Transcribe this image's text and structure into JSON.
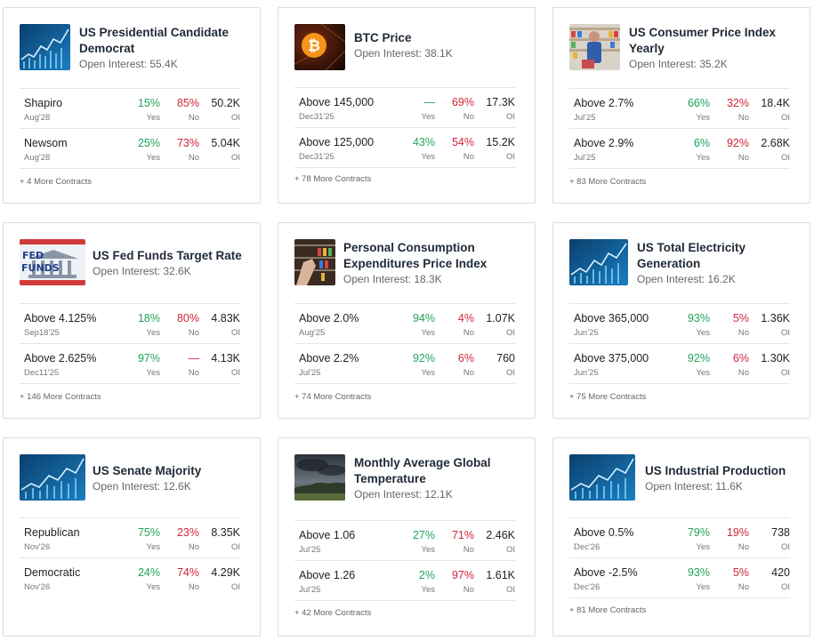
{
  "cards": [
    {
      "title": "US Presidential Candidate Democrat",
      "open_interest": "Open Interest: 55.4K",
      "image": "chart-thumbnail",
      "rows": [
        {
          "label": "Shapiro",
          "date": "Aug'28",
          "yes": "15%",
          "no": "85%",
          "oi": "50.2K",
          "yes_lbl": "Yes",
          "no_lbl": "No",
          "oi_lbl": "OI"
        },
        {
          "label": "Newsom",
          "date": "Aug'28",
          "yes": "25%",
          "no": "73%",
          "oi": "5.04K",
          "yes_lbl": "Yes",
          "no_lbl": "No",
          "oi_lbl": "OI"
        }
      ],
      "more": "+ 4 More Contracts"
    },
    {
      "title": "BTC Price",
      "open_interest": "Open Interest: 38.1K",
      "image": "bitcoin-thumbnail",
      "rows": [
        {
          "label": "Above 145,000",
          "date": "Dec31'25",
          "yes": "—",
          "no": "69%",
          "oi": "17.3K",
          "yes_lbl": "Yes",
          "no_lbl": "No",
          "oi_lbl": "OI"
        },
        {
          "label": "Above 125,000",
          "date": "Dec31'25",
          "yes": "43%",
          "no": "54%",
          "oi": "15.2K",
          "yes_lbl": "Yes",
          "no_lbl": "No",
          "oi_lbl": "OI"
        }
      ],
      "more": "+ 78 More Contracts"
    },
    {
      "title": "US Consumer Price Index Yearly",
      "open_interest": "Open Interest: 35.2K",
      "image": "grocery-thumbnail",
      "rows": [
        {
          "label": "Above 2.7%",
          "date": "Jul'25",
          "yes": "66%",
          "no": "32%",
          "oi": "18.4K",
          "yes_lbl": "Yes",
          "no_lbl": "No",
          "oi_lbl": "OI"
        },
        {
          "label": "Above 2.9%",
          "date": "Jul'25",
          "yes": "6%",
          "no": "92%",
          "oi": "2.68K",
          "yes_lbl": "Yes",
          "no_lbl": "No",
          "oi_lbl": "OI"
        }
      ],
      "more": "+ 83 More Contracts"
    },
    {
      "title": "US Fed Funds Target Rate",
      "open_interest": "Open Interest: 32.6K",
      "image": "fed-funds-thumbnail",
      "image_text": "FED FUNDS",
      "rows": [
        {
          "label": "Above 4.125%",
          "date": "Sep18'25",
          "yes": "18%",
          "no": "80%",
          "oi": "4.83K",
          "yes_lbl": "Yes",
          "no_lbl": "No",
          "oi_lbl": "OI"
        },
        {
          "label": "Above 2.625%",
          "date": "Dec11'25",
          "yes": "97%",
          "no": "—",
          "oi": "4.13K",
          "yes_lbl": "Yes",
          "no_lbl": "No",
          "oi_lbl": "OI"
        }
      ],
      "more": "+ 146 More Contracts"
    },
    {
      "title": "Personal Consumption Expenditures Price Index",
      "open_interest": "Open Interest: 18.3K",
      "image": "shopping-thumbnail",
      "rows": [
        {
          "label": "Above 2.0%",
          "date": "Aug'25",
          "yes": "94%",
          "no": "4%",
          "oi": "1.07K",
          "yes_lbl": "Yes",
          "no_lbl": "No",
          "oi_lbl": "OI"
        },
        {
          "label": "Above 2.2%",
          "date": "Jul'25",
          "yes": "92%",
          "no": "6%",
          "oi": "760",
          "yes_lbl": "Yes",
          "no_lbl": "No",
          "oi_lbl": "OI"
        }
      ],
      "more": "+ 74 More Contracts"
    },
    {
      "title": "US Total Electricity Generation",
      "open_interest": "Open Interest: 16.2K",
      "image": "chart-thumbnail",
      "rows": [
        {
          "label": "Above 365,000",
          "date": "Jun'25",
          "yes": "93%",
          "no": "5%",
          "oi": "1.36K",
          "yes_lbl": "Yes",
          "no_lbl": "No",
          "oi_lbl": "OI"
        },
        {
          "label": "Above 375,000",
          "date": "Jun'25",
          "yes": "92%",
          "no": "6%",
          "oi": "1.30K",
          "yes_lbl": "Yes",
          "no_lbl": "No",
          "oi_lbl": "OI"
        }
      ],
      "more": "+ 75 More Contracts"
    },
    {
      "title": "US Senate Majority",
      "open_interest": "Open Interest: 12.6K",
      "image": "chart-thumbnail",
      "rows": [
        {
          "label": "Republican",
          "date": "Nov'26",
          "yes": "75%",
          "no": "23%",
          "oi": "8.35K",
          "yes_lbl": "Yes",
          "no_lbl": "No",
          "oi_lbl": "OI"
        },
        {
          "label": "Democratic",
          "date": "Nov'26",
          "yes": "24%",
          "no": "74%",
          "oi": "4.29K",
          "yes_lbl": "Yes",
          "no_lbl": "No",
          "oi_lbl": "OI"
        }
      ],
      "more": ""
    },
    {
      "title": "Monthly Average Global Temperature",
      "open_interest": "Open Interest: 12.1K",
      "image": "storm-thumbnail",
      "rows": [
        {
          "label": "Above 1.06",
          "date": "Jul'25",
          "yes": "27%",
          "no": "71%",
          "oi": "2.46K",
          "yes_lbl": "Yes",
          "no_lbl": "No",
          "oi_lbl": "OI"
        },
        {
          "label": "Above 1.26",
          "date": "Jul'25",
          "yes": "2%",
          "no": "97%",
          "oi": "1.61K",
          "yes_lbl": "Yes",
          "no_lbl": "No",
          "oi_lbl": "OI"
        }
      ],
      "more": "+ 42 More Contracts"
    },
    {
      "title": "US Industrial Production",
      "open_interest": "Open Interest: 11.6K",
      "image": "chart-thumbnail",
      "rows": [
        {
          "label": "Above 0.5%",
          "date": "Dec'26",
          "yes": "79%",
          "no": "19%",
          "oi": "738",
          "yes_lbl": "Yes",
          "no_lbl": "No",
          "oi_lbl": "OI"
        },
        {
          "label": "Above -2.5%",
          "date": "Dec'26",
          "yes": "93%",
          "no": "5%",
          "oi": "420",
          "yes_lbl": "Yes",
          "no_lbl": "No",
          "oi_lbl": "OI"
        }
      ],
      "more": "+ 81 More Contracts"
    }
  ],
  "colors": {
    "yes": "#22a35a",
    "no": "#d0263b",
    "title": "#1f2a36"
  }
}
